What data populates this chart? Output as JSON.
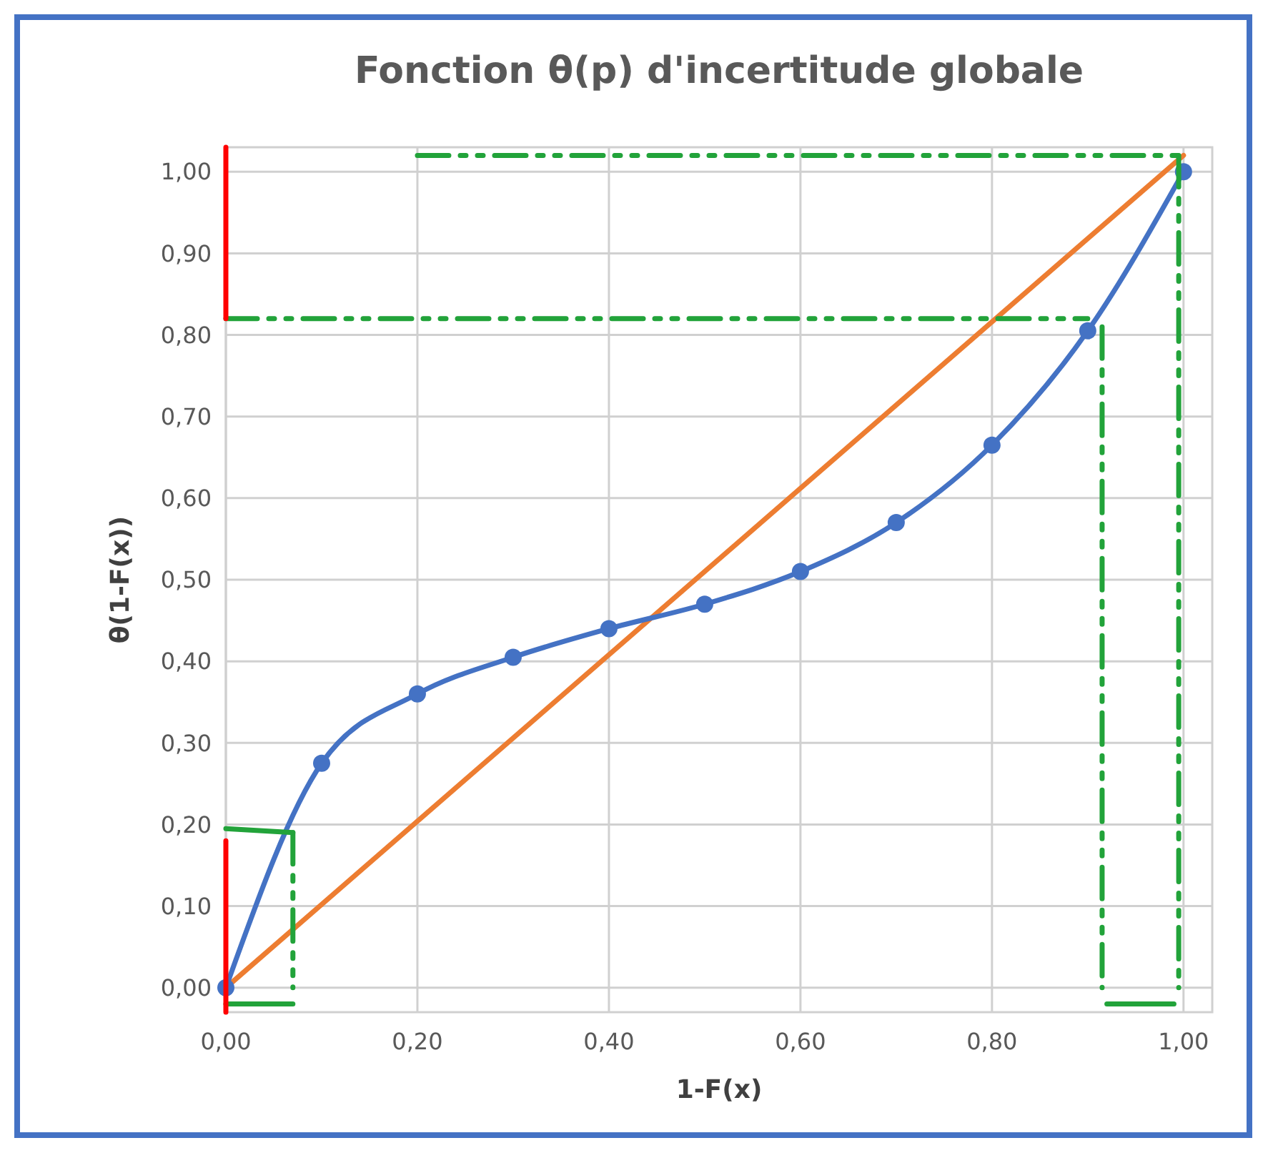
{
  "chart_data": {
    "type": "line",
    "title": "Fonction θ(p) d'incertitude globale",
    "xlabel": "1-F(x)",
    "ylabel": "θ(1-F(x))",
    "xlim": [
      0,
      1.03
    ],
    "ylim": [
      -0.03,
      1.03
    ],
    "xticks": [
      {
        "value": 0,
        "label": "0,00"
      },
      {
        "value": 0.2,
        "label": "0,20"
      },
      {
        "value": 0.4,
        "label": "0,40"
      },
      {
        "value": 0.6,
        "label": "0,60"
      },
      {
        "value": 0.8,
        "label": "0,80"
      },
      {
        "value": 1,
        "label": "1,00"
      }
    ],
    "yticks": [
      {
        "value": 0,
        "label": "0,00"
      },
      {
        "value": 0.1,
        "label": "0,10"
      },
      {
        "value": 0.2,
        "label": "0,20"
      },
      {
        "value": 0.3,
        "label": "0,30"
      },
      {
        "value": 0.4,
        "label": "0,40"
      },
      {
        "value": 0.5,
        "label": "0,50"
      },
      {
        "value": 0.6,
        "label": "0,60"
      },
      {
        "value": 0.7,
        "label": "0,70"
      },
      {
        "value": 0.8,
        "label": "0,80"
      },
      {
        "value": 0.9,
        "label": "0,90"
      },
      {
        "value": 1,
        "label": "1,00"
      }
    ],
    "grid": true,
    "series": [
      {
        "color": "#ed7d31",
        "x": [
          0,
          1
        ],
        "values": [
          0,
          1.02
        ],
        "marker": "none",
        "line_style": "solid"
      },
      {
        "color": "#4472c4",
        "x": [
          0,
          0.1,
          0.2,
          0.3,
          0.4,
          0.5,
          0.6,
          0.7,
          0.8,
          0.9,
          1
        ],
        "values": [
          0,
          0.275,
          0.36,
          0.405,
          0.44,
          0.47,
          0.51,
          0.57,
          0.665,
          0.805,
          1
        ],
        "marker": "circle",
        "line_style": "solid"
      },
      {
        "color": "#22a33a",
        "x": [
          0,
          0.9
        ],
        "values": [
          0.82,
          0.82
        ],
        "marker": "none",
        "line_style": "dashed"
      },
      {
        "color": "#22a33a",
        "x": [
          0.915,
          0.915
        ],
        "values": [
          0.81,
          0
        ],
        "marker": "none",
        "line_style": "dashed"
      },
      {
        "color": "#22a33a",
        "x": [
          0.2,
          0.995
        ],
        "values": [
          1.02,
          1.02
        ],
        "marker": "none",
        "line_style": "dashed"
      },
      {
        "color": "#22a33a",
        "x": [
          0.995,
          0.995
        ],
        "values": [
          1.02,
          0
        ],
        "marker": "none",
        "line_style": "dashed"
      },
      {
        "color": "#22a33a",
        "x": [
          0.07,
          0.07
        ],
        "values": [
          0.19,
          0
        ],
        "marker": "none",
        "line_style": "dashed"
      },
      {
        "color": "#22a33a",
        "x": [
          0,
          0.07
        ],
        "values": [
          0.195,
          0.19
        ],
        "marker": "none",
        "line_style": "solid"
      },
      {
        "color": "#22a33a",
        "x": [
          0,
          0.07
        ],
        "values": [
          -0.02,
          -0.02
        ],
        "marker": "none",
        "line_style": "solid"
      },
      {
        "color": "#22a33a",
        "x": [
          0.92,
          0.99
        ],
        "values": [
          -0.02,
          -0.02
        ],
        "marker": "none",
        "line_style": "solid"
      },
      {
        "color": "#ff0000",
        "x": [
          0,
          0
        ],
        "values": [
          0.82,
          1.03
        ],
        "marker": "none",
        "line_style": "solid"
      },
      {
        "color": "#ff0000",
        "x": [
          0,
          0
        ],
        "values": [
          -0.03,
          0.18
        ],
        "marker": "none",
        "line_style": "solid"
      }
    ]
  }
}
